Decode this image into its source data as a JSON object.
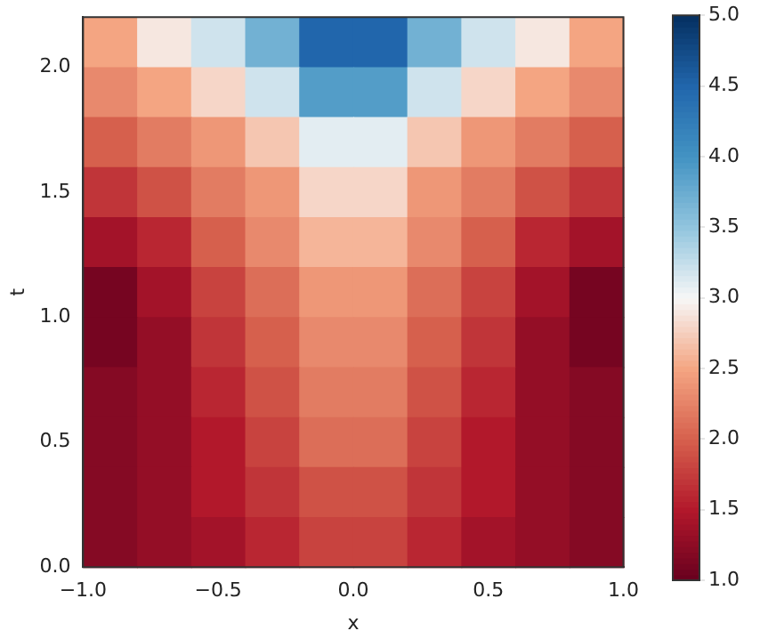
{
  "chart_data": {
    "type": "heatmap",
    "xlabel": "x",
    "ylabel": "t",
    "x": [
      -0.9,
      -0.7,
      -0.5,
      -0.3,
      -0.1,
      0.1,
      0.3,
      0.5,
      0.7,
      0.9
    ],
    "xlim": [
      -1,
      1
    ],
    "ylim": [
      0,
      2.2
    ],
    "xticks": [
      {
        "value": -1,
        "label": "−1.0"
      },
      {
        "value": -0.5,
        "label": "−0.5"
      },
      {
        "value": 0,
        "label": "0.0"
      },
      {
        "value": 0.5,
        "label": "0.5"
      },
      {
        "value": 1,
        "label": "1.0"
      }
    ],
    "yticks": [
      {
        "value": 0,
        "label": "0.0"
      },
      {
        "value": 0.5,
        "label": "0.5"
      },
      {
        "value": 1,
        "label": "1.0"
      },
      {
        "value": 1.5,
        "label": "1.5"
      },
      {
        "value": 2,
        "label": "2.0"
      }
    ],
    "clim": [
      1,
      5
    ],
    "cticks": [
      {
        "value": 1,
        "label": "1.0"
      },
      {
        "value": 1.5,
        "label": "1.5"
      },
      {
        "value": 2,
        "label": "2.0"
      },
      {
        "value": 2.5,
        "label": "2.5"
      },
      {
        "value": 3,
        "label": "3.0"
      },
      {
        "value": 3.5,
        "label": "3.5"
      },
      {
        "value": 4,
        "label": "4.0"
      },
      {
        "value": 4.5,
        "label": "4.5"
      },
      {
        "value": 5,
        "label": "5.0"
      }
    ],
    "cells": [
      [
        2.5,
        2.9,
        3.2,
        3.7,
        4.5,
        4.5,
        3.7,
        3.2,
        2.9,
        2.5
      ],
      [
        2.3,
        2.5,
        2.8,
        3.2,
        3.9,
        3.9,
        3.2,
        2.8,
        2.5,
        2.3
      ],
      [
        2.0,
        2.2,
        2.4,
        2.7,
        3.1,
        3.1,
        2.7,
        2.4,
        2.2,
        2.0
      ],
      [
        1.7,
        1.9,
        2.2,
        2.4,
        2.8,
        2.8,
        2.4,
        2.2,
        1.9,
        1.7
      ],
      [
        1.4,
        1.6,
        2.0,
        2.3,
        2.6,
        2.6,
        2.3,
        2.0,
        1.6,
        1.4
      ],
      [
        1.1,
        1.4,
        1.8,
        2.1,
        2.4,
        2.4,
        2.1,
        1.8,
        1.4,
        1.1
      ],
      [
        1.1,
        1.3,
        1.7,
        2.0,
        2.3,
        2.3,
        2.0,
        1.7,
        1.3,
        1.1
      ],
      [
        1.2,
        1.3,
        1.6,
        1.9,
        2.2,
        2.2,
        1.9,
        1.6,
        1.3,
        1.2
      ],
      [
        1.2,
        1.3,
        1.5,
        1.8,
        2.1,
        2.1,
        1.8,
        1.5,
        1.3,
        1.2
      ],
      [
        1.2,
        1.3,
        1.5,
        1.7,
        1.9,
        1.9,
        1.7,
        1.5,
        1.3,
        1.2
      ],
      [
        1.2,
        1.3,
        1.4,
        1.6,
        1.8,
        1.8,
        1.6,
        1.4,
        1.3,
        1.2
      ]
    ]
  }
}
